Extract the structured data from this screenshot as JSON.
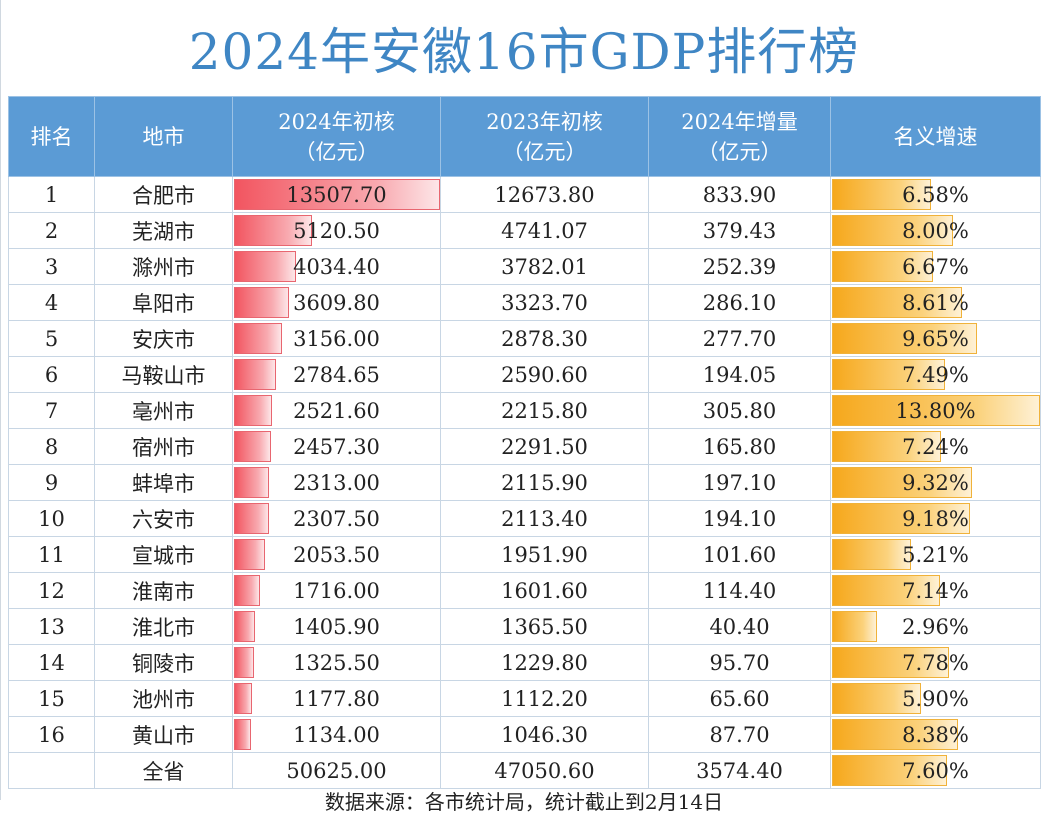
{
  "title": "2024年安徽16市GDP排行榜",
  "headers": {
    "rank": "排名",
    "city": "地市",
    "gdp2024": [
      "2024年初核",
      "（亿元）"
    ],
    "gdp2023": [
      "2023年初核",
      "（亿元）"
    ],
    "increase": [
      "2024年增量",
      "（亿元）"
    ],
    "growth": "名义增速"
  },
  "rows": [
    {
      "rank": "1",
      "city": "合肥市",
      "gdp2024": "13507.70",
      "gdp2023": "12673.80",
      "increase": "833.90",
      "growth": "6.58%",
      "gdp_num": 13507.7,
      "growth_num": 6.58
    },
    {
      "rank": "2",
      "city": "芜湖市",
      "gdp2024": "5120.50",
      "gdp2023": "4741.07",
      "increase": "379.43",
      "growth": "8.00%",
      "gdp_num": 5120.5,
      "growth_num": 8.0
    },
    {
      "rank": "3",
      "city": "滁州市",
      "gdp2024": "4034.40",
      "gdp2023": "3782.01",
      "increase": "252.39",
      "growth": "6.67%",
      "gdp_num": 4034.4,
      "growth_num": 6.67
    },
    {
      "rank": "4",
      "city": "阜阳市",
      "gdp2024": "3609.80",
      "gdp2023": "3323.70",
      "increase": "286.10",
      "growth": "8.61%",
      "gdp_num": 3609.8,
      "growth_num": 8.61
    },
    {
      "rank": "5",
      "city": "安庆市",
      "gdp2024": "3156.00",
      "gdp2023": "2878.30",
      "increase": "277.70",
      "growth": "9.65%",
      "gdp_num": 3156.0,
      "growth_num": 9.65
    },
    {
      "rank": "6",
      "city": "马鞍山市",
      "gdp2024": "2784.65",
      "gdp2023": "2590.60",
      "increase": "194.05",
      "growth": "7.49%",
      "gdp_num": 2784.65,
      "growth_num": 7.49
    },
    {
      "rank": "7",
      "city": "亳州市",
      "gdp2024": "2521.60",
      "gdp2023": "2215.80",
      "increase": "305.80",
      "growth": "13.80%",
      "gdp_num": 2521.6,
      "growth_num": 13.8
    },
    {
      "rank": "8",
      "city": "宿州市",
      "gdp2024": "2457.30",
      "gdp2023": "2291.50",
      "increase": "165.80",
      "growth": "7.24%",
      "gdp_num": 2457.3,
      "growth_num": 7.24
    },
    {
      "rank": "9",
      "city": "蚌埠市",
      "gdp2024": "2313.00",
      "gdp2023": "2115.90",
      "increase": "197.10",
      "growth": "9.32%",
      "gdp_num": 2313.0,
      "growth_num": 9.32
    },
    {
      "rank": "10",
      "city": "六安市",
      "gdp2024": "2307.50",
      "gdp2023": "2113.40",
      "increase": "194.10",
      "growth": "9.18%",
      "gdp_num": 2307.5,
      "growth_num": 9.18
    },
    {
      "rank": "11",
      "city": "宣城市",
      "gdp2024": "2053.50",
      "gdp2023": "1951.90",
      "increase": "101.60",
      "growth": "5.21%",
      "gdp_num": 2053.5,
      "growth_num": 5.21
    },
    {
      "rank": "12",
      "city": "淮南市",
      "gdp2024": "1716.00",
      "gdp2023": "1601.60",
      "increase": "114.40",
      "growth": "7.14%",
      "gdp_num": 1716.0,
      "growth_num": 7.14
    },
    {
      "rank": "13",
      "city": "淮北市",
      "gdp2024": "1405.90",
      "gdp2023": "1365.50",
      "increase": "40.40",
      "growth": "2.96%",
      "gdp_num": 1405.9,
      "growth_num": 2.96
    },
    {
      "rank": "14",
      "city": "铜陵市",
      "gdp2024": "1325.50",
      "gdp2023": "1229.80",
      "increase": "95.70",
      "growth": "7.78%",
      "gdp_num": 1325.5,
      "growth_num": 7.78
    },
    {
      "rank": "15",
      "city": "池州市",
      "gdp2024": "1177.80",
      "gdp2023": "1112.20",
      "increase": "65.60",
      "growth": "5.90%",
      "gdp_num": 1177.8,
      "growth_num": 5.9
    },
    {
      "rank": "16",
      "city": "黄山市",
      "gdp2024": "1134.00",
      "gdp2023": "1046.30",
      "increase": "87.70",
      "growth": "8.38%",
      "gdp_num": 1134.0,
      "growth_num": 8.38
    }
  ],
  "total": {
    "rank": "",
    "city": "全省",
    "gdp2024": "50625.00",
    "gdp2023": "47050.60",
    "increase": "3574.40",
    "growth": "7.60%",
    "growth_num": 7.6
  },
  "footer": "数据来源：各市统计局，统计截止到2月14日",
  "colors": {
    "header_bg": "#5b9bd5",
    "title": "#3f86c4",
    "gdp_bar": "#f25560",
    "growth_bar": "#f6a81c"
  }
}
